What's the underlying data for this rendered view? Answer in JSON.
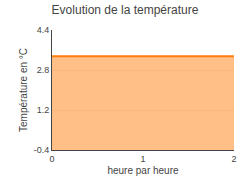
{
  "chart_data": {
    "type": "area",
    "title": "Evolution de la température",
    "xlabel": "heure par heure",
    "ylabel": "Température en °C",
    "x": [
      0,
      2
    ],
    "values": [
      3.35,
      3.35
    ],
    "xlim": [
      0,
      2
    ],
    "ylim": [
      -0.4,
      4.4
    ],
    "xticks": [
      0,
      1,
      2
    ],
    "yticks": [
      -0.4,
      1.2,
      2.8,
      4.4
    ],
    "grid": "y"
  }
}
